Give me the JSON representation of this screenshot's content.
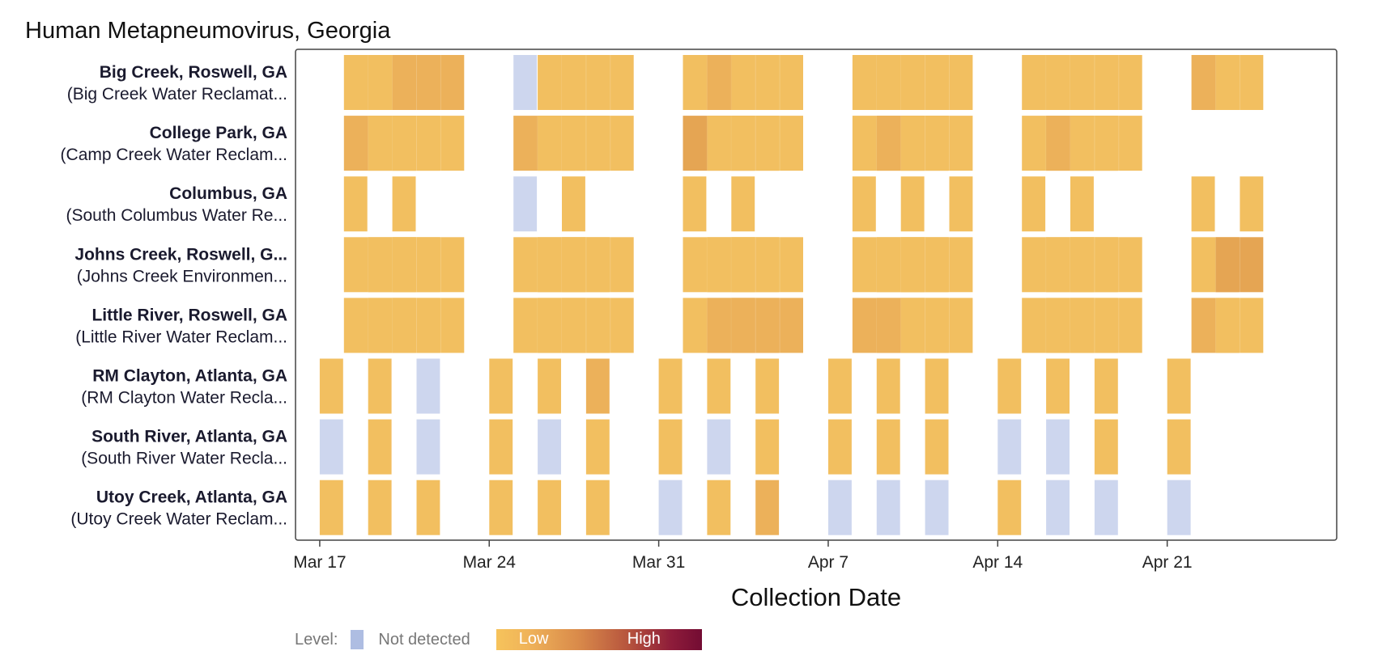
{
  "chart_data": {
    "type": "heatmap",
    "title": "Human Metapneumovirus, Georgia",
    "xlabel": "Collection Date",
    "x_ticks": [
      "Mar 17",
      "Mar 24",
      "Mar 31",
      "Apr 7",
      "Apr 14",
      "Apr 21"
    ],
    "x_range": [
      "2024-03-16",
      "2024-04-28"
    ],
    "levels": {
      "nd": "Not detected",
      "lo": "Low",
      "hi": "High"
    },
    "level_colors": {
      "nd": "#cdd6ee",
      "lo": "#f2bf60",
      "mid": "#ecb15a",
      "mid2": "#e5a553",
      "hi": "#730c33"
    },
    "sites": [
      {
        "name": "Big Creek, Roswell, GA",
        "plant": "(Big Creek Water Reclamat...",
        "samples": [
          [
            "2024-03-18",
            "lo",
            3
          ],
          [
            "2024-03-19",
            "lo",
            3
          ],
          [
            "2024-03-20",
            "mid",
            3
          ],
          [
            "2024-03-25",
            "nd",
            1
          ],
          [
            "2024-03-26",
            "lo",
            3
          ],
          [
            "2024-03-27",
            "lo",
            3
          ],
          [
            "2024-04-01",
            "lo",
            3
          ],
          [
            "2024-04-02",
            "mid",
            3
          ],
          [
            "2024-04-03",
            "lo",
            3
          ],
          [
            "2024-04-08",
            "lo",
            3
          ],
          [
            "2024-04-09",
            "lo",
            3
          ],
          [
            "2024-04-10",
            "lo",
            3
          ],
          [
            "2024-04-15",
            "lo",
            3
          ],
          [
            "2024-04-16",
            "lo",
            3
          ],
          [
            "2024-04-17",
            "lo",
            3
          ],
          [
            "2024-04-22",
            "mid",
            2
          ],
          [
            "2024-04-23",
            "lo",
            2
          ]
        ]
      },
      {
        "name": "College Park, GA",
        "plant": "(Camp Creek Water Reclam...",
        "samples": [
          [
            "2024-03-18",
            "mid",
            3
          ],
          [
            "2024-03-19",
            "lo",
            3
          ],
          [
            "2024-03-20",
            "lo",
            3
          ],
          [
            "2024-03-25",
            "mid",
            3
          ],
          [
            "2024-03-26",
            "lo",
            3
          ],
          [
            "2024-03-27",
            "lo",
            3
          ],
          [
            "2024-04-01",
            "mid2",
            3
          ],
          [
            "2024-04-02",
            "lo",
            3
          ],
          [
            "2024-04-03",
            "lo",
            3
          ],
          [
            "2024-04-08",
            "lo",
            3
          ],
          [
            "2024-04-09",
            "mid",
            3
          ],
          [
            "2024-04-10",
            "lo",
            3
          ],
          [
            "2024-04-15",
            "lo",
            3
          ],
          [
            "2024-04-16",
            "mid",
            3
          ],
          [
            "2024-04-17",
            "lo",
            3
          ]
        ]
      },
      {
        "name": "Columbus, GA",
        "plant": "(South Columbus Water Re...",
        "samples": [
          [
            "2024-03-18",
            "lo",
            1
          ],
          [
            "2024-03-20",
            "lo",
            1
          ],
          [
            "2024-03-25",
            "nd",
            1
          ],
          [
            "2024-03-27",
            "lo",
            1
          ],
          [
            "2024-04-01",
            "lo",
            1
          ],
          [
            "2024-04-03",
            "lo",
            1
          ],
          [
            "2024-04-08",
            "lo",
            1
          ],
          [
            "2024-04-10",
            "lo",
            1
          ],
          [
            "2024-04-12",
            "lo",
            1
          ],
          [
            "2024-04-15",
            "lo",
            1
          ],
          [
            "2024-04-17",
            "lo",
            1
          ],
          [
            "2024-04-22",
            "lo",
            1
          ],
          [
            "2024-04-24",
            "lo",
            1
          ]
        ]
      },
      {
        "name": "Johns Creek, Roswell, G...",
        "plant": "(Johns Creek Environmen...",
        "samples": [
          [
            "2024-03-18",
            "lo",
            3
          ],
          [
            "2024-03-19",
            "lo",
            3
          ],
          [
            "2024-03-20",
            "lo",
            3
          ],
          [
            "2024-03-25",
            "lo",
            3
          ],
          [
            "2024-03-26",
            "lo",
            3
          ],
          [
            "2024-03-27",
            "lo",
            3
          ],
          [
            "2024-04-01",
            "lo",
            3
          ],
          [
            "2024-04-02",
            "lo",
            3
          ],
          [
            "2024-04-03",
            "lo",
            3
          ],
          [
            "2024-04-08",
            "lo",
            3
          ],
          [
            "2024-04-09",
            "lo",
            3
          ],
          [
            "2024-04-10",
            "lo",
            3
          ],
          [
            "2024-04-15",
            "lo",
            3
          ],
          [
            "2024-04-16",
            "lo",
            3
          ],
          [
            "2024-04-17",
            "lo",
            3
          ],
          [
            "2024-04-22",
            "lo",
            2
          ],
          [
            "2024-04-23",
            "mid2",
            2
          ]
        ]
      },
      {
        "name": "Little River, Roswell, GA",
        "plant": "(Little River Water Reclam...",
        "samples": [
          [
            "2024-03-18",
            "lo",
            3
          ],
          [
            "2024-03-19",
            "lo",
            3
          ],
          [
            "2024-03-20",
            "lo",
            3
          ],
          [
            "2024-03-25",
            "lo",
            3
          ],
          [
            "2024-03-26",
            "lo",
            3
          ],
          [
            "2024-03-27",
            "lo",
            3
          ],
          [
            "2024-04-01",
            "lo",
            3
          ],
          [
            "2024-04-02",
            "mid",
            3
          ],
          [
            "2024-04-03",
            "mid",
            3
          ],
          [
            "2024-04-08",
            "mid",
            3
          ],
          [
            "2024-04-09",
            "mid",
            3
          ],
          [
            "2024-04-10",
            "lo",
            3
          ],
          [
            "2024-04-15",
            "lo",
            3
          ],
          [
            "2024-04-16",
            "lo",
            3
          ],
          [
            "2024-04-17",
            "lo",
            3
          ],
          [
            "2024-04-22",
            "mid",
            2
          ],
          [
            "2024-04-23",
            "lo",
            2
          ]
        ]
      },
      {
        "name": "RM Clayton, Atlanta, GA",
        "plant": "(RM Clayton Water Recla...",
        "samples": [
          [
            "2024-03-17",
            "lo",
            1
          ],
          [
            "2024-03-19",
            "lo",
            1
          ],
          [
            "2024-03-21",
            "nd",
            1
          ],
          [
            "2024-03-24",
            "lo",
            1
          ],
          [
            "2024-03-26",
            "lo",
            1
          ],
          [
            "2024-03-28",
            "mid",
            1
          ],
          [
            "2024-03-31",
            "lo",
            1
          ],
          [
            "2024-04-02",
            "lo",
            1
          ],
          [
            "2024-04-04",
            "lo",
            1
          ],
          [
            "2024-04-07",
            "lo",
            1
          ],
          [
            "2024-04-09",
            "lo",
            1
          ],
          [
            "2024-04-11",
            "lo",
            1
          ],
          [
            "2024-04-14",
            "lo",
            1
          ],
          [
            "2024-04-16",
            "lo",
            1
          ],
          [
            "2024-04-18",
            "lo",
            1
          ],
          [
            "2024-04-21",
            "lo",
            1
          ]
        ]
      },
      {
        "name": "South River, Atlanta, GA",
        "plant": "(South River Water Recla...",
        "samples": [
          [
            "2024-03-17",
            "nd",
            1
          ],
          [
            "2024-03-19",
            "lo",
            1
          ],
          [
            "2024-03-21",
            "nd",
            1
          ],
          [
            "2024-03-24",
            "lo",
            1
          ],
          [
            "2024-03-26",
            "nd",
            1
          ],
          [
            "2024-03-28",
            "lo",
            1
          ],
          [
            "2024-03-31",
            "lo",
            1
          ],
          [
            "2024-04-02",
            "nd",
            1
          ],
          [
            "2024-04-04",
            "lo",
            1
          ],
          [
            "2024-04-07",
            "lo",
            1
          ],
          [
            "2024-04-09",
            "lo",
            1
          ],
          [
            "2024-04-11",
            "lo",
            1
          ],
          [
            "2024-04-14",
            "nd",
            1
          ],
          [
            "2024-04-16",
            "nd",
            1
          ],
          [
            "2024-04-18",
            "lo",
            1
          ],
          [
            "2024-04-21",
            "lo",
            1
          ]
        ]
      },
      {
        "name": "Utoy Creek, Atlanta, GA",
        "plant": "(Utoy Creek Water Reclam...",
        "samples": [
          [
            "2024-03-17",
            "lo",
            1
          ],
          [
            "2024-03-19",
            "lo",
            1
          ],
          [
            "2024-03-21",
            "lo",
            1
          ],
          [
            "2024-03-24",
            "lo",
            1
          ],
          [
            "2024-03-26",
            "lo",
            1
          ],
          [
            "2024-03-28",
            "lo",
            1
          ],
          [
            "2024-03-31",
            "nd",
            1
          ],
          [
            "2024-04-02",
            "lo",
            1
          ],
          [
            "2024-04-04",
            "mid",
            1
          ],
          [
            "2024-04-07",
            "nd",
            1
          ],
          [
            "2024-04-09",
            "nd",
            1
          ],
          [
            "2024-04-11",
            "nd",
            1
          ],
          [
            "2024-04-14",
            "lo",
            1
          ],
          [
            "2024-04-16",
            "nd",
            1
          ],
          [
            "2024-04-18",
            "nd",
            1
          ],
          [
            "2024-04-21",
            "nd",
            1
          ]
        ]
      }
    ]
  },
  "legend": {
    "label": "Level:"
  }
}
